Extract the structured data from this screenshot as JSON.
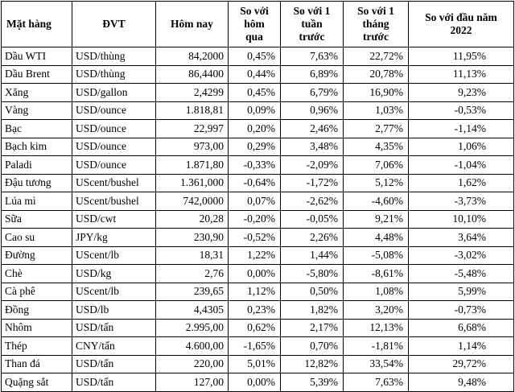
{
  "headers": {
    "item": "Mặt hàng",
    "unit": "ĐVT",
    "today": "Hôm nay",
    "vs_yesterday": [
      "So với",
      "hôm",
      "qua"
    ],
    "vs_week": [
      "So với 1",
      "tuần",
      "trước"
    ],
    "vs_month": [
      "So với 1",
      "tháng",
      "trước"
    ],
    "vs_year_start": [
      "So với đầu năm",
      "2022"
    ]
  },
  "rows": [
    {
      "item": "Dầu WTI",
      "unit": "USD/thùng",
      "today": "84,2000",
      "d1": "0,45%",
      "w1": "7,63%",
      "m1": "22,72%",
      "ytd": "11,95%"
    },
    {
      "item": "Dầu Brent",
      "unit": "USD/thùng",
      "today": "86,4400",
      "d1": "0,44%",
      "w1": "6,89%",
      "m1": "20,78%",
      "ytd": "11,13%"
    },
    {
      "item": "Xăng",
      "unit": "USD/gallon",
      "today": "2,4299",
      "d1": "0,45%",
      "w1": "6,79%",
      "m1": "16,90%",
      "ytd": "9,23%"
    },
    {
      "item": "Vàng",
      "unit": "USD/ounce",
      "today": "1.818,81",
      "d1": "0,09%",
      "w1": "0,96%",
      "m1": "1,03%",
      "ytd": "-0,53%"
    },
    {
      "item": "Bạc",
      "unit": "USD/ounce",
      "today": "22,997",
      "d1": "0,20%",
      "w1": "2,46%",
      "m1": "2,77%",
      "ytd": "-1,14%"
    },
    {
      "item": "Bạch kim",
      "unit": "USD/ounce",
      "today": "973,00",
      "d1": "0,29%",
      "w1": "3,48%",
      "m1": "4,35%",
      "ytd": "1,06%"
    },
    {
      "item": "Paladi",
      "unit": "USD/ounce",
      "today": "1.871,80",
      "d1": "-0,33%",
      "w1": "-2,09%",
      "m1": "7,06%",
      "ytd": "-1,04%"
    },
    {
      "item": "Đậu tương",
      "unit": "UScent/bushel",
      "today": "1.361,000",
      "d1": "-0,64%",
      "w1": "-1,72%",
      "m1": "5,12%",
      "ytd": "1,62%"
    },
    {
      "item": "Lúa mì",
      "unit": "UScent/bushel",
      "today": "742,0000",
      "d1": "0,07%",
      "w1": "-2,62%",
      "m1": "-4,60%",
      "ytd": "-3,73%"
    },
    {
      "item": "Sữa",
      "unit": "USD/cwt",
      "today": "20,28",
      "d1": "-0,20%",
      "w1": "-0,05%",
      "m1": "9,21%",
      "ytd": "10,10%"
    },
    {
      "item": "Cao su",
      "unit": "JPY/kg",
      "today": "230,90",
      "d1": "-0,52%",
      "w1": "2,26%",
      "m1": "4,48%",
      "ytd": "3,64%"
    },
    {
      "item": "Đường",
      "unit": "UScent/lb",
      "today": "18,31",
      "d1": "1,22%",
      "w1": "1,44%",
      "m1": "-5,08%",
      "ytd": "-3,02%"
    },
    {
      "item": "Chè",
      "unit": "USD/kg",
      "today": "2,76",
      "d1": "0,00%",
      "w1": "-5,80%",
      "m1": "-8,61%",
      "ytd": "-5,48%"
    },
    {
      "item": "Cà phê",
      "unit": "UScent/lb",
      "today": "239,65",
      "d1": "1,12%",
      "w1": "0,50%",
      "m1": "1,08%",
      "ytd": "5,99%"
    },
    {
      "item": "Đồng",
      "unit": "USD/lb",
      "today": "4,4305",
      "d1": "0,23%",
      "w1": "1,82%",
      "m1": "3,20%",
      "ytd": "-0,73%"
    },
    {
      "item": "Nhôm",
      "unit": "USD/tấn",
      "today": "2.995,00",
      "d1": "0,62%",
      "w1": "2,17%",
      "m1": "12,13%",
      "ytd": "6,68%"
    },
    {
      "item": "Thép",
      "unit": "CNY/tấn",
      "today": "4.600,00",
      "d1": "-1,65%",
      "w1": "0,70%",
      "m1": "-1,81%",
      "ytd": "1,14%"
    },
    {
      "item": "Than đá",
      "unit": "USD/tấn",
      "today": "220,00",
      "d1": "5,01%",
      "w1": "12,82%",
      "m1": "33,54%",
      "ytd": "29,72%"
    },
    {
      "item": "Quặng sắt",
      "unit": "USD/tấn",
      "today": "127,00",
      "d1": "0,00%",
      "w1": "5,39%",
      "m1": "7,63%",
      "ytd": "9,48%"
    }
  ]
}
